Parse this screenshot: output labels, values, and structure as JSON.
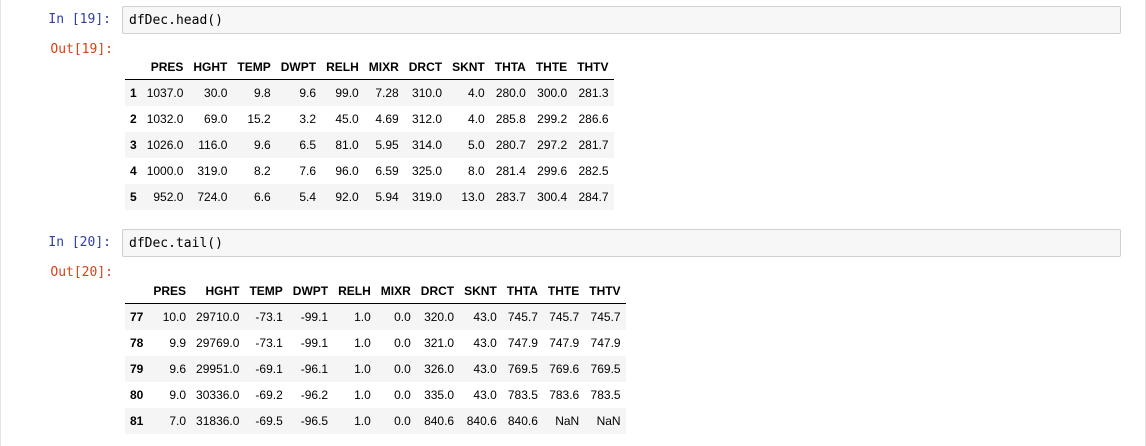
{
  "cells": [
    {
      "in_prompt": "In [19]:",
      "code": "dfDec.head()",
      "out_prompt": "Out[19]:",
      "columns": [
        "",
        "PRES",
        "HGHT",
        "TEMP",
        "DWPT",
        "RELH",
        "MIXR",
        "DRCT",
        "SKNT",
        "THTA",
        "THTE",
        "THTV"
      ],
      "rows": [
        {
          "index": "1",
          "values": [
            "1037.0",
            "30.0",
            "9.8",
            "9.6",
            "99.0",
            "7.28",
            "310.0",
            "4.0",
            "280.0",
            "300.0",
            "281.3"
          ]
        },
        {
          "index": "2",
          "values": [
            "1032.0",
            "69.0",
            "15.2",
            "3.2",
            "45.0",
            "4.69",
            "312.0",
            "4.0",
            "285.8",
            "299.2",
            "286.6"
          ]
        },
        {
          "index": "3",
          "values": [
            "1026.0",
            "116.0",
            "9.6",
            "6.5",
            "81.0",
            "5.95",
            "314.0",
            "5.0",
            "280.7",
            "297.2",
            "281.7"
          ]
        },
        {
          "index": "4",
          "values": [
            "1000.0",
            "319.0",
            "8.2",
            "7.6",
            "96.0",
            "6.59",
            "325.0",
            "8.0",
            "281.4",
            "299.6",
            "282.5"
          ]
        },
        {
          "index": "5",
          "values": [
            "952.0",
            "724.0",
            "6.6",
            "5.4",
            "92.0",
            "5.94",
            "319.0",
            "13.0",
            "283.7",
            "300.4",
            "284.7"
          ]
        }
      ]
    },
    {
      "in_prompt": "In [20]:",
      "code": "dfDec.tail()",
      "out_prompt": "Out[20]:",
      "columns": [
        "",
        "PRES",
        "HGHT",
        "TEMP",
        "DWPT",
        "RELH",
        "MIXR",
        "DRCT",
        "SKNT",
        "THTA",
        "THTE",
        "THTV"
      ],
      "rows": [
        {
          "index": "77",
          "values": [
            "10.0",
            "29710.0",
            "-73.1",
            "-99.1",
            "1.0",
            "0.0",
            "320.0",
            "43.0",
            "745.7",
            "745.7",
            "745.7"
          ]
        },
        {
          "index": "78",
          "values": [
            "9.9",
            "29769.0",
            "-73.1",
            "-99.1",
            "1.0",
            "0.0",
            "321.0",
            "43.0",
            "747.9",
            "747.9",
            "747.9"
          ]
        },
        {
          "index": "79",
          "values": [
            "9.6",
            "29951.0",
            "-69.1",
            "-96.1",
            "1.0",
            "0.0",
            "326.0",
            "43.0",
            "769.5",
            "769.6",
            "769.5"
          ]
        },
        {
          "index": "80",
          "values": [
            "9.0",
            "30336.0",
            "-69.2",
            "-96.2",
            "1.0",
            "0.0",
            "335.0",
            "43.0",
            "783.5",
            "783.6",
            "783.5"
          ]
        },
        {
          "index": "81",
          "values": [
            "7.0",
            "31836.0",
            "-69.5",
            "-96.5",
            "1.0",
            "0.0",
            "840.6",
            "840.6",
            "840.6",
            "NaN",
            "NaN"
          ]
        }
      ]
    }
  ]
}
